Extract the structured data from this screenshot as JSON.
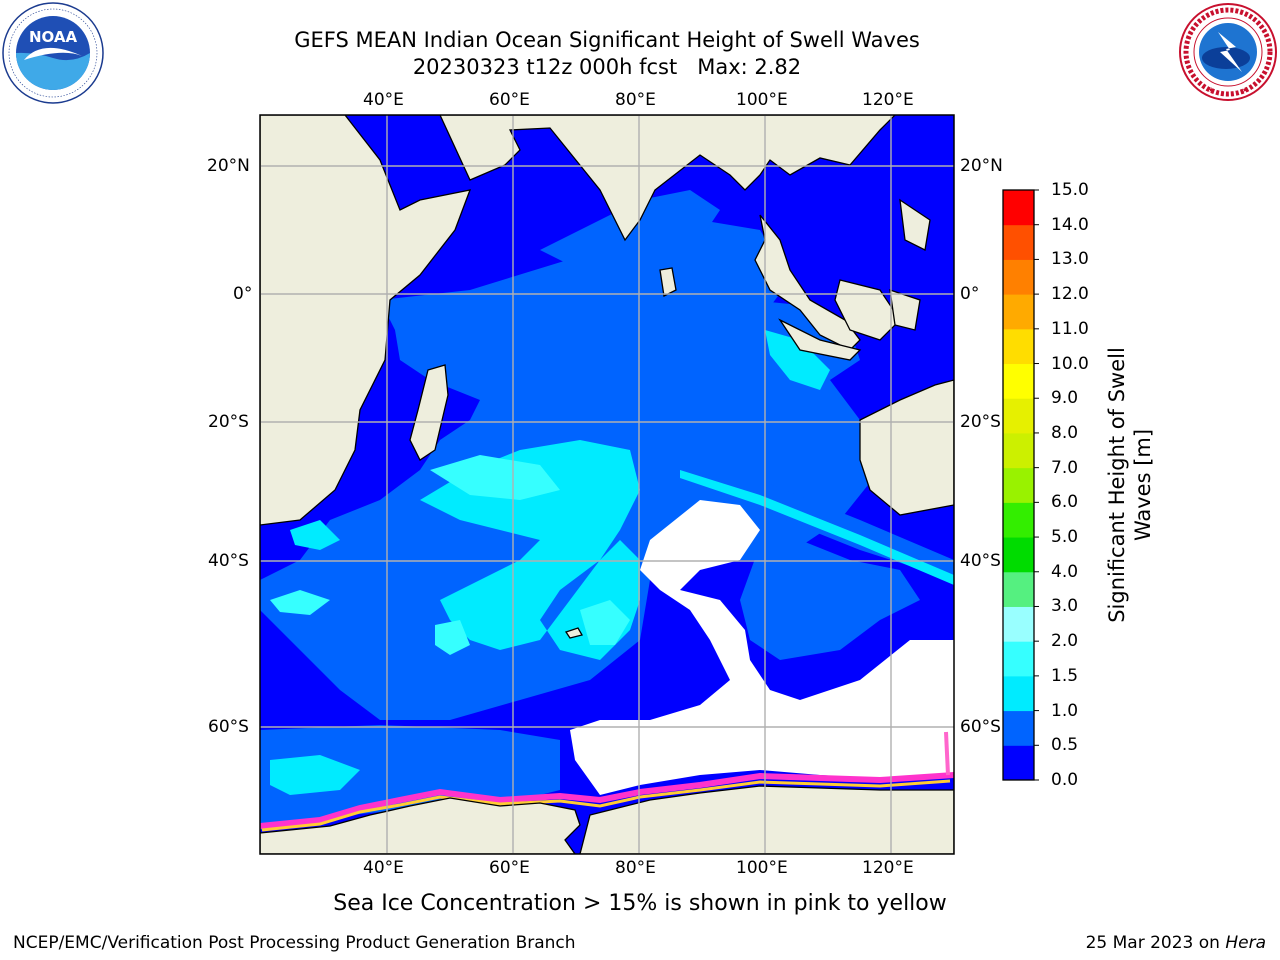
{
  "header": {
    "title_line1": "GEFS MEAN Indian Ocean Significant Height of Swell Waves",
    "title_line2": "20230323 t12z 000h fcst   Max: 2.82"
  },
  "logos": {
    "left": {
      "name": "NOAA",
      "text": "NOAA",
      "ring_text": "NATIONAL OCEANIC AND ATMOSPHERIC ADMINISTRATION · U.S. DEPARTMENT OF COMMERCE"
    },
    "right": {
      "name": "National Weather Service",
      "ring_text": "NATIONAL WEATHER SERVICE"
    }
  },
  "map": {
    "lon_ticks": [
      "40°E",
      "60°E",
      "80°E",
      "100°E",
      "120°E"
    ],
    "lat_ticks": [
      "20°N",
      "0°",
      "20°S",
      "40°S",
      "60°S"
    ],
    "lon_range": [
      20,
      129
    ],
    "lat_range": [
      -75,
      27
    ],
    "grid": true,
    "colors": {
      "land": "#eeeedd",
      "ice_free_sea": "#ffffff"
    }
  },
  "colorbar": {
    "title": "Significant Height of Swell\nWaves [m]",
    "ticks": [
      "15.0",
      "14.0",
      "13.0",
      "12.0",
      "11.0",
      "10.0",
      "9.0",
      "8.0",
      "7.0",
      "6.0",
      "5.0",
      "4.0",
      "3.0",
      "2.0",
      "1.5",
      "1.0",
      "0.5",
      "0.0"
    ],
    "colors_bottom_to_top": [
      "#0000ff",
      "#0064ff",
      "#00ebff",
      "#36ffff",
      "#99ffff",
      "#55f080",
      "#00dc00",
      "#33ee00",
      "#99f200",
      "#ccf000",
      "#e6f000",
      "#ffff00",
      "#ffdd00",
      "#ffaa00",
      "#ff8000",
      "#ff5000",
      "#ff0000"
    ]
  },
  "caption": "Sea Ice Concentration > 15% is shown in pink to yellow",
  "footer": {
    "left": "NCEP/EMC/Verification Post Processing Product Generation Branch",
    "date": "25 Mar 2023 on ",
    "host": "Hera"
  }
}
